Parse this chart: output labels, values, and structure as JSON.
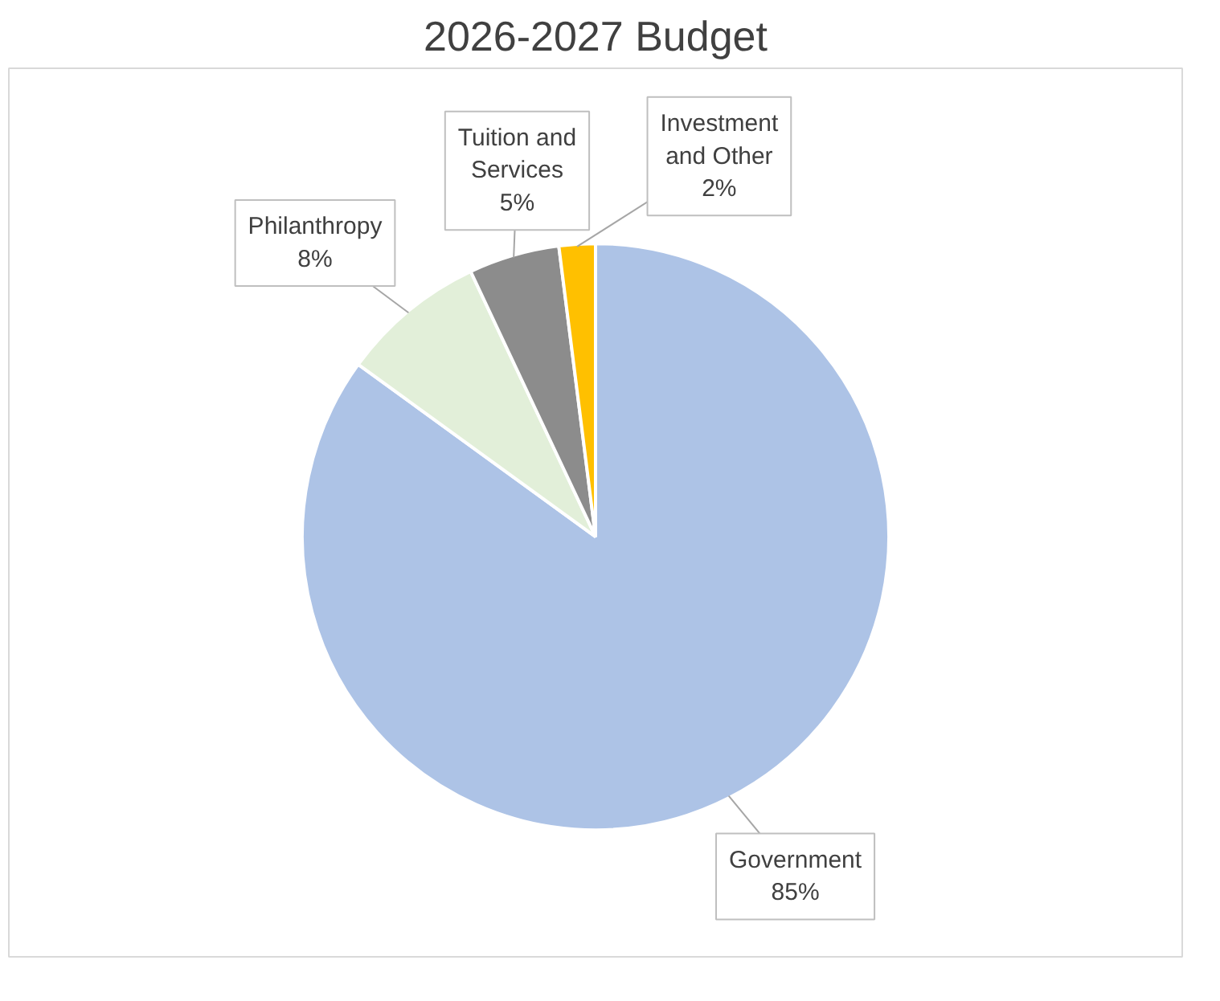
{
  "chart_data": {
    "type": "pie",
    "title": "2026-2027 Budget",
    "categories": [
      "Government",
      "Philanthropy",
      "Tuition and Services",
      "Investment and Other"
    ],
    "values": [
      85,
      8,
      5,
      2
    ],
    "colors": [
      "#adc3e6",
      "#e2efd9",
      "#8c8c8c",
      "#ffc000"
    ],
    "value_labels": [
      "85%",
      "8%",
      "5%",
      "2%"
    ]
  }
}
